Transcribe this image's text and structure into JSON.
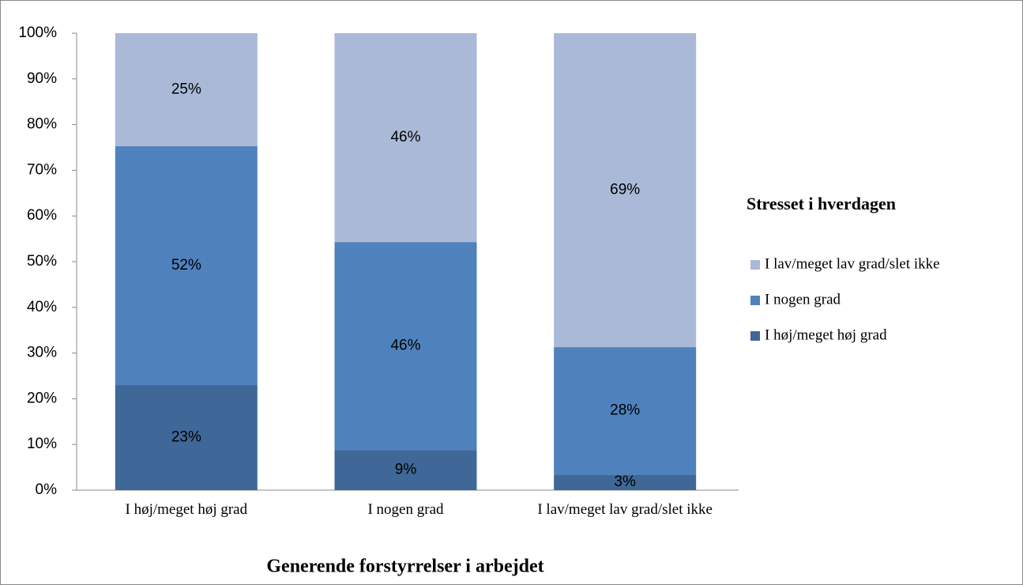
{
  "chart_data": {
    "type": "stacked_bar",
    "categories": [
      "I høj/meget høj grad",
      "I nogen grad",
      "I lav/meget lav grad/slet ikke"
    ],
    "series": [
      {
        "name": "I høj/meget høj grad",
        "color": "#3f6797",
        "values": [
          23.0,
          8.8,
          3.4
        ],
        "value_labels": [
          "23%",
          "9%",
          "3%"
        ]
      },
      {
        "name": "I nogen grad",
        "color": "#4f81bd",
        "values": [
          52.3,
          45.5,
          27.9
        ],
        "value_labels": [
          "52%",
          "46%",
          "28%"
        ]
      },
      {
        "name": "I lav/meget lav grad/slet ikke",
        "color": "#aab9d8",
        "values": [
          24.7,
          45.7,
          68.7
        ],
        "value_labels": [
          "25%",
          "46%",
          "69%"
        ]
      }
    ],
    "ylim": [
      0,
      100
    ],
    "yticks": [
      {
        "value": 0,
        "label": "0%"
      },
      {
        "value": 10,
        "label": "10%"
      },
      {
        "value": 20,
        "label": "20%"
      },
      {
        "value": 30,
        "label": "30%"
      },
      {
        "value": 40,
        "label": "40%"
      },
      {
        "value": 50,
        "label": "50%"
      },
      {
        "value": 60,
        "label": "60%"
      },
      {
        "value": 70,
        "label": "70%"
      },
      {
        "value": 80,
        "label": "80%"
      },
      {
        "value": 90,
        "label": "90%"
      },
      {
        "value": 100,
        "label": "100%"
      }
    ],
    "xlabel": "Generende forstyrrelser i arbejdet",
    "legend_title": "Stresset i hverdagen",
    "legend": "right"
  }
}
